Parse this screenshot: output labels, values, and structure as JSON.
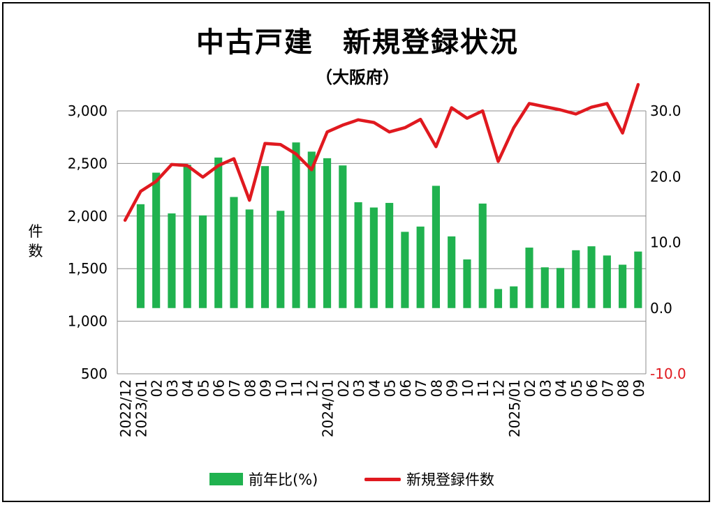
{
  "title": "中古戸建　新規登録状況",
  "subtitle": "（大阪府）",
  "chart_data": {
    "type": "bar+line",
    "ylabel_left": "件\n数",
    "left_axis": {
      "min": 500,
      "max": 3000,
      "step": 500,
      "tick_labels": [
        "3,000",
        "2,500",
        "2,000",
        "1,500",
        "1,000",
        "500"
      ]
    },
    "right_axis": {
      "min": -10,
      "max": 30,
      "step": 10,
      "tick_labels": [
        "30.0",
        "20.0",
        "10.0",
        "0.0",
        "-10.0"
      ]
    },
    "x_tick_labels": [
      "2022/12",
      "2023/01",
      "02",
      "03",
      "04",
      "05",
      "06",
      "07",
      "08",
      "09",
      "10",
      "11",
      "12",
      "2024/01",
      "02",
      "03",
      "04",
      "05",
      "06",
      "07",
      "08",
      "09",
      "10",
      "11",
      "12",
      "2025/01",
      "02",
      "03",
      "04",
      "05",
      "06",
      "07",
      "08",
      "09"
    ],
    "series": [
      {
        "name": "前年比(%)",
        "type": "bar",
        "axis": "right",
        "color": "#20b24f",
        "values": [
          null,
          15.8,
          20.6,
          14.4,
          21.8,
          14.1,
          22.9,
          16.9,
          15.0,
          21.6,
          14.8,
          25.2,
          23.8,
          22.8,
          21.7,
          16.1,
          15.3,
          16.0,
          11.6,
          12.4,
          18.6,
          10.9,
          7.4,
          15.9,
          2.9,
          3.3,
          9.2,
          6.2,
          6.1,
          8.8,
          9.4,
          8.0,
          6.6,
          8.6
        ]
      },
      {
        "name": "新規登録件数",
        "type": "line",
        "axis": "left",
        "color": "#e0191f",
        "values": [
          1960,
          2235,
          2330,
          2490,
          2480,
          2370,
          2480,
          2545,
          2150,
          2690,
          2680,
          2590,
          2440,
          2800,
          2865,
          2915,
          2890,
          2800,
          2840,
          2920,
          2660,
          3030,
          2930,
          3000,
          2520,
          2840,
          3070,
          3040,
          3010,
          2970,
          3035,
          3070,
          2790,
          3250
        ]
      }
    ],
    "grid": "horizontal",
    "legend_position": "bottom"
  },
  "legend": {
    "bar_label": "前年比(%)",
    "line_label": "新規登録件数"
  }
}
